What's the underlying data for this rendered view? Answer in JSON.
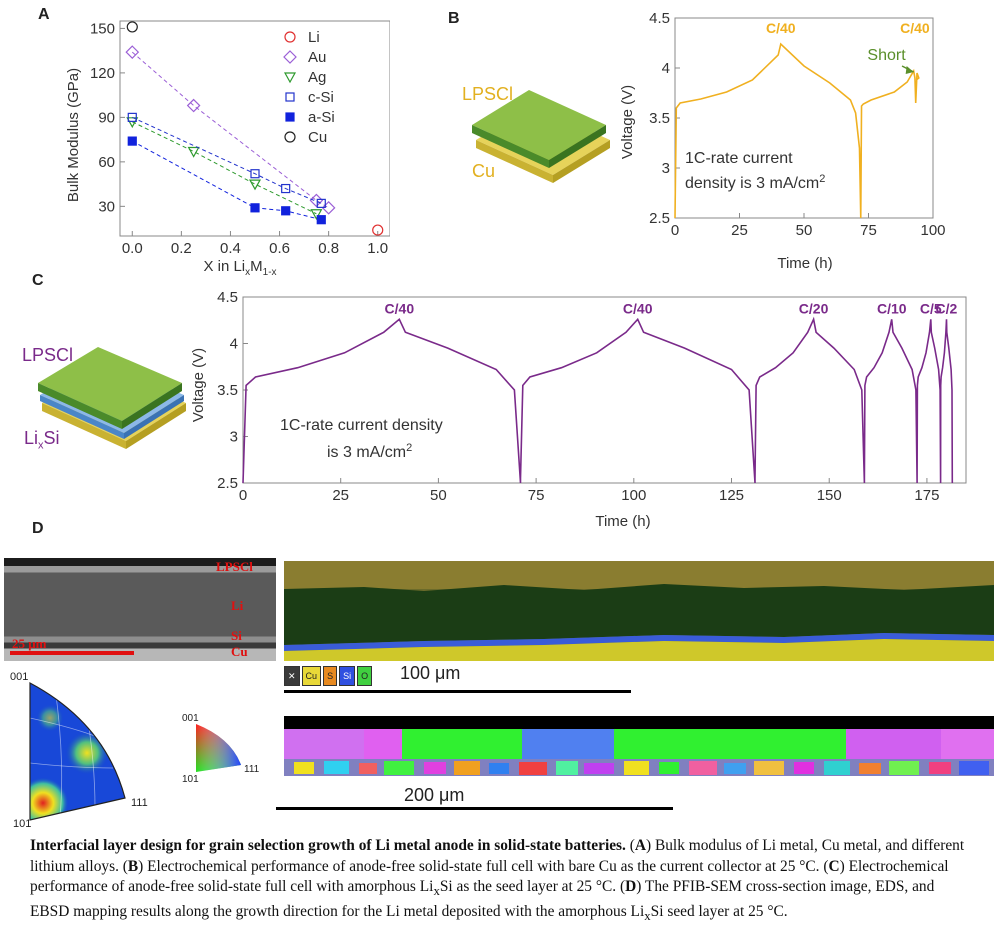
{
  "panels": {
    "A": {
      "label": "A",
      "chart_data": {
        "type": "scatter",
        "xlabel": "X in Li",
        "xlabel_sub_x": "x",
        "xlabel_mid": "M",
        "xlabel_sub_1x": "1-x",
        "ylabel": "Bulk Modulus (GPa)",
        "xlim": [
          -0.05,
          1.05
        ],
        "ylim": [
          10,
          155
        ],
        "xticks": [
          "0.0",
          "0.2",
          "0.4",
          "0.6",
          "0.8",
          "1.0"
        ],
        "yticks": [
          "30",
          "60",
          "90",
          "120",
          "150"
        ],
        "series": [
          {
            "name": "Li",
            "color": "#e03030",
            "marker": "circle-open",
            "x": [
              1.0
            ],
            "y": [
              14
            ]
          },
          {
            "name": "Au",
            "color": "#9b5fd6",
            "marker": "diamond-open",
            "x": [
              0.0,
              0.25,
              0.75,
              0.8
            ],
            "y": [
              134,
              98,
              34,
              29
            ]
          },
          {
            "name": "Ag",
            "color": "#2e9a2e",
            "marker": "triangle-down-open",
            "x": [
              0.0,
              0.25,
              0.5,
              0.75
            ],
            "y": [
              87,
              67,
              45,
              25
            ]
          },
          {
            "name": "c-Si",
            "color": "#2233cc",
            "marker": "square-open",
            "x": [
              0.0,
              0.5,
              0.625,
              0.77
            ],
            "y": [
              90,
              52,
              42,
              32
            ]
          },
          {
            "name": "a-Si",
            "color": "#1122dd",
            "marker": "square-filled",
            "x": [
              0.0,
              0.5,
              0.625,
              0.77
            ],
            "y": [
              74,
              29,
              27,
              21
            ]
          },
          {
            "name": "Cu",
            "color": "#222222",
            "marker": "circle-open",
            "x": [
              0.0
            ],
            "y": [
              151
            ]
          }
        ]
      }
    },
    "B": {
      "label": "B",
      "schematic": {
        "top": "LPSCl",
        "bottom": "Cu"
      },
      "chart_data": {
        "type": "line",
        "xlabel": "Time (h)",
        "ylabel": "Voltage (V)",
        "xlim": [
          0,
          100
        ],
        "ylim": [
          2.5,
          4.5
        ],
        "xticks": [
          "0",
          "25",
          "50",
          "75",
          "100"
        ],
        "yticks": [
          "2.5",
          "3",
          "3.5",
          "4",
          "4.5"
        ],
        "color": "#f0b020",
        "series": [
          {
            "name": "",
            "x": [
              0,
              0.5,
              2,
              10,
              20,
              30,
              40,
              41,
              50,
              60,
              68,
              70,
              71.5,
              72,
              72.3,
              73,
              76,
              85,
              90,
              92.5,
              93,
              93.3,
              93.8,
              94.5,
              93.5
            ],
            "y": [
              2.5,
              3.6,
              3.65,
              3.69,
              3.76,
              3.88,
              4.13,
              4.24,
              4.02,
              3.85,
              3.68,
              3.55,
              3.2,
              2.5,
              3.62,
              3.64,
              3.68,
              3.76,
              3.86,
              3.97,
              3.9,
              3.65,
              3.95,
              3.9,
              3.88
            ]
          }
        ],
        "annotations": [
          {
            "text": "C/40",
            "x": 41,
            "y": 4.35
          },
          {
            "text": "C/40",
            "x": 93,
            "y": 4.35
          },
          {
            "text": "Short",
            "x": 82,
            "y": 4.08,
            "color": "#5a8f2a"
          }
        ],
        "note_line1": "1C-rate current",
        "note_line2_pre": "density is 3 mA/cm",
        "note_sup": "2"
      }
    },
    "C": {
      "label": "C",
      "schematic": {
        "top": "LPSCl",
        "bottom_pre": "Li",
        "bottom_sub": "x",
        "bottom_post": "Si"
      },
      "chart_data": {
        "type": "line",
        "xlabel": "Time (h)",
        "ylabel": "Voltage (V)",
        "xlim": [
          0,
          185
        ],
        "ylim": [
          2.5,
          4.5
        ],
        "xticks": [
          "0",
          "25",
          "50",
          "75",
          "100",
          "125",
          "150",
          "175"
        ],
        "yticks": [
          "2.5",
          "3",
          "3.5",
          "4",
          "4.5"
        ],
        "color": "#7a2a8a",
        "cycles": [
          {
            "label": "C/40",
            "start": 0,
            "peak": 40,
            "end": 71
          },
          {
            "label": "C/40",
            "start": 71,
            "peak": 101,
            "end": 131
          },
          {
            "label": "C/20",
            "start": 131,
            "peak": 146,
            "end": 159
          },
          {
            "label": "C/10",
            "start": 159,
            "peak": 166,
            "end": 172.5
          },
          {
            "label": "C/5",
            "start": 172.5,
            "peak": 176,
            "end": 178.5
          },
          {
            "label": "C/2",
            "start": 178.5,
            "peak": 180,
            "end": 181.5
          }
        ],
        "note_line1": "1C-rate current density",
        "note_line2_pre": "is 3 mA/cm",
        "note_sup": "2"
      }
    },
    "D": {
      "label": "D",
      "sem_labels": [
        "LPSCl",
        "Li",
        "Si",
        "Cu"
      ],
      "sem_scale": "25 μm",
      "eds_legend": [
        "Cu",
        "S",
        "Si",
        "O"
      ],
      "eds_scale": "100 μm",
      "ebsd_scale": "200 μm",
      "pole_labels": {
        "top": "001",
        "left": "101",
        "right": "111"
      },
      "key_labels": {
        "top": "001",
        "left": "101",
        "right": "111"
      }
    }
  },
  "caption": {
    "bold": "Interfacial layer design for grain selection growth of Li metal anode in solid-state batteries.",
    "a_open": " (",
    "a_letter": "A",
    "a_text": ") Bulk modulus of Li metal, Cu metal, and different lithium alloys. (",
    "b_letter": "B",
    "b_text": ") Electrochemical performance of anode-free solid-state full cell with bare Cu as the current collector at 25 °C. (",
    "c_letter": "C",
    "c_text": ") Electrochemical performance of anode-free solid-state full cell with amorphous Li",
    "c_sub": "x",
    "c_text2": "Si as the seed layer at 25 °C. (",
    "d_letter": "D",
    "d_text": ") The PFIB-SEM cross-section image, EDS, and EBSD mapping results along the growth direction for the Li metal deposited with the amorphous Li",
    "d_sub": "x",
    "d_text2": "Si seed layer at 25 °C."
  }
}
